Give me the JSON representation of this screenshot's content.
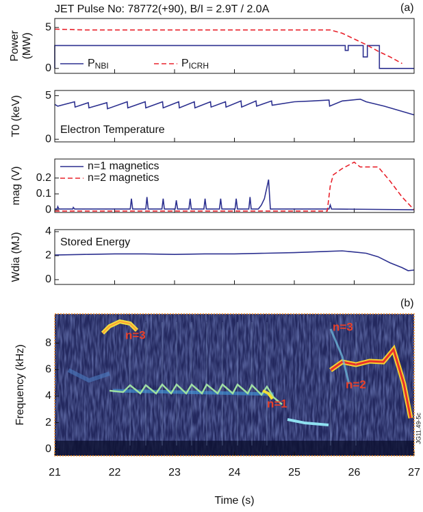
{
  "chart_data": [
    {
      "type": "line",
      "title": "JET Pulse No: 78772(+90), B/I = 2.9T / 2.0A",
      "panel_label": "(a)",
      "ylabel": [
        "Power",
        "(MW)"
      ],
      "xlim": [
        21,
        27
      ],
      "ylim": [
        -0.6,
        6.1
      ],
      "yticks": [
        0,
        5
      ],
      "legend": "lower left",
      "series": [
        {
          "name": "PNBI",
          "color": "#2b2f8f",
          "style": "solid",
          "x": [
            21,
            21,
            25.85,
            25.85,
            25.9,
            25.9,
            26.15,
            26.15,
            26.22,
            26.22,
            26.42,
            26.42,
            27
          ],
          "values": [
            0,
            2.8,
            2.8,
            2.2,
            2.2,
            2.8,
            2.8,
            1.4,
            1.4,
            2.8,
            2.8,
            0,
            0
          ]
        },
        {
          "name": "PICRH",
          "color": "#e8202a",
          "style": "dashed",
          "x": [
            21,
            21.5,
            22,
            23,
            24,
            25,
            25.6,
            25.8,
            26.0,
            26.2,
            26.4,
            26.6,
            26.8
          ],
          "values": [
            4.8,
            4.7,
            4.7,
            4.7,
            4.7,
            4.7,
            4.7,
            4.3,
            3.6,
            2.9,
            2.1,
            1.4,
            0.6
          ]
        }
      ]
    },
    {
      "type": "line",
      "ylabel": "T0 (keV)",
      "annotation": "Electron Temperature",
      "xlim": [
        21,
        27
      ],
      "ylim": [
        -0.3,
        5.6
      ],
      "yticks": [
        0,
        5
      ],
      "series": [
        {
          "color": "#2b2f8f",
          "style": "solid",
          "x": [
            21.0,
            21.05,
            21.33,
            21.34,
            21.56,
            21.57,
            21.87,
            21.88,
            22.21,
            22.22,
            22.51,
            22.52,
            22.8,
            22.81,
            23.07,
            23.08,
            23.33,
            23.34,
            23.6,
            23.61,
            23.85,
            23.86,
            24.11,
            24.12,
            24.36,
            24.37,
            24.62,
            24.63,
            25.0,
            25.3,
            25.58,
            25.59,
            25.8,
            26.1,
            26.2,
            26.5,
            26.8,
            27.0
          ],
          "values": [
            4.0,
            3.8,
            4.3,
            3.7,
            4.2,
            3.6,
            4.2,
            3.5,
            4.3,
            3.6,
            4.3,
            3.6,
            4.3,
            3.6,
            4.3,
            3.6,
            4.3,
            3.6,
            4.3,
            3.7,
            4.3,
            3.7,
            4.4,
            3.7,
            4.4,
            3.8,
            4.4,
            3.9,
            4.3,
            4.4,
            4.5,
            3.8,
            4.4,
            4.6,
            4.3,
            3.8,
            3.2,
            2.8
          ]
        }
      ]
    },
    {
      "type": "line",
      "ylabel": "mag (V)",
      "xlim": [
        21,
        27
      ],
      "ylim": [
        -0.017,
        0.32
      ],
      "yticks": [
        0,
        0.1,
        0.2
      ],
      "legend": "upper left",
      "series": [
        {
          "name": "n=1 magnetics",
          "color": "#2b2f8f",
          "style": "solid",
          "x": [
            21.0,
            21.04,
            21.05,
            21.07,
            21.3,
            21.31,
            21.33,
            22.26,
            22.28,
            22.3,
            22.52,
            22.54,
            22.56,
            22.79,
            22.81,
            22.83,
            23.01,
            23.03,
            23.05,
            23.24,
            23.26,
            23.28,
            23.49,
            23.51,
            23.53,
            23.75,
            23.77,
            23.79,
            24.01,
            24.03,
            24.05,
            24.24,
            24.26,
            24.28,
            24.4,
            24.45,
            24.5,
            24.57,
            24.6,
            25.58,
            25.6,
            25.62,
            27.0
          ],
          "values": [
            0.005,
            0.005,
            0.02,
            0.005,
            0.005,
            0.015,
            0.005,
            0.005,
            0.07,
            0.005,
            0.005,
            0.08,
            0.005,
            0.005,
            0.07,
            0.005,
            0.005,
            0.06,
            0.005,
            0.005,
            0.07,
            0.005,
            0.005,
            0.07,
            0.005,
            0.005,
            0.07,
            0.005,
            0.005,
            0.07,
            0.005,
            0.005,
            0.08,
            0.005,
            0.005,
            0.03,
            0.07,
            0.19,
            0.005,
            0.005,
            0.03,
            0.005,
            0.0
          ]
        },
        {
          "name": "n=2 magnetics",
          "color": "#e8202a",
          "style": "dashed",
          "x": [
            21,
            25.55,
            25.6,
            25.65,
            25.8,
            26.0,
            26.1,
            26.4,
            26.6,
            26.8,
            27.0
          ],
          "values": [
            -0.008,
            -0.008,
            0.15,
            0.22,
            0.26,
            0.3,
            0.27,
            0.27,
            0.18,
            0.08,
            0.0
          ]
        }
      ]
    },
    {
      "type": "line",
      "ylabel": "Wdia (MJ)",
      "annotation": "Stored Energy",
      "xlim": [
        21,
        27
      ],
      "ylim": [
        -0.4,
        4.17
      ],
      "yticks": [
        0,
        2,
        4
      ],
      "series": [
        {
          "color": "#2b2f8f",
          "style": "solid",
          "x": [
            21,
            21.5,
            22,
            22.5,
            23,
            23.5,
            24,
            24.5,
            25,
            25.5,
            25.8,
            26.0,
            26.2,
            26.4,
            26.6,
            26.8,
            26.9,
            27.0
          ],
          "values": [
            2.05,
            2.1,
            2.15,
            2.15,
            2.1,
            2.15,
            2.15,
            2.2,
            2.25,
            2.35,
            2.4,
            2.3,
            2.2,
            1.9,
            1.4,
            1.0,
            0.75,
            0.8
          ]
        }
      ]
    },
    {
      "type": "spectrogram",
      "panel_label": "(b)",
      "ylabel": "Frequency (kHz)",
      "xlabel": "Time (s)",
      "xlim": [
        21,
        27
      ],
      "xticks": [
        21,
        22,
        23,
        24,
        25,
        26,
        27
      ],
      "ylim": [
        -0.5,
        10.2
      ],
      "yticks": [
        0,
        2,
        4,
        6,
        8
      ],
      "annotations": [
        "n=3",
        "n=1",
        "n=3",
        "n=2"
      ],
      "credit": "JG11.49-5c"
    }
  ]
}
